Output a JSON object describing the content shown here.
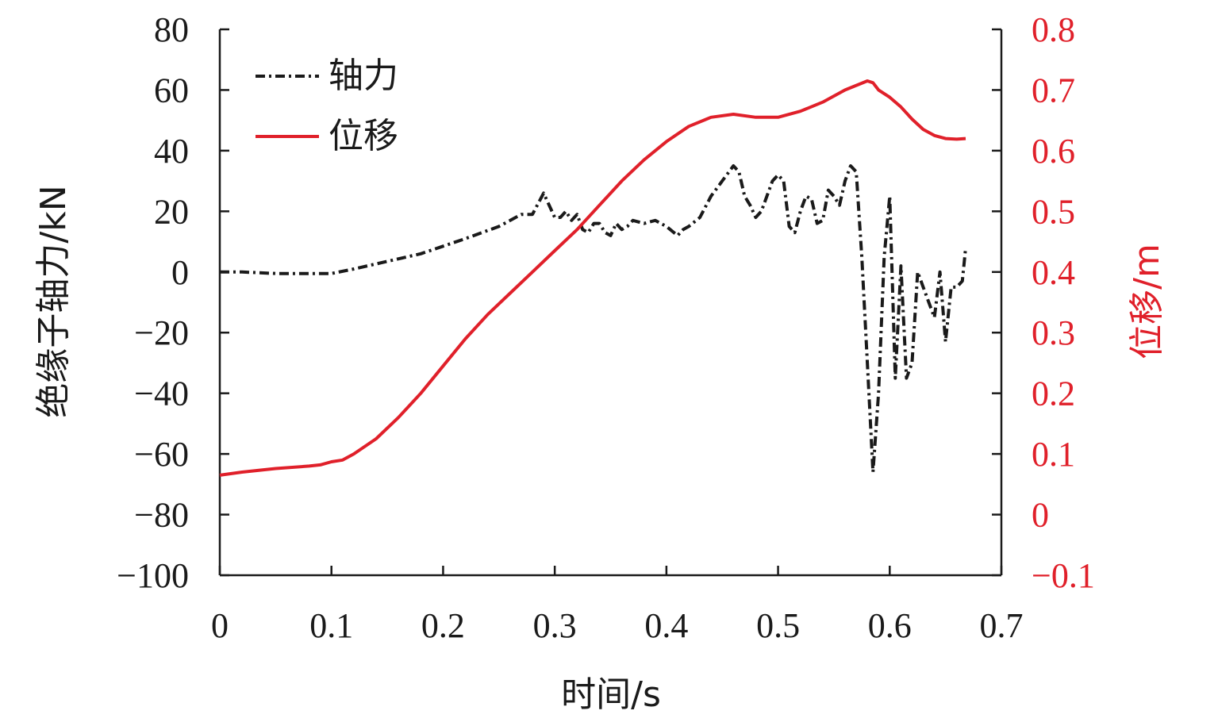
{
  "chart_data": {
    "type": "line",
    "xlabel": "时间/s",
    "y_left_label": "绝缘子轴力/kN",
    "y_right_label": "位移/m",
    "xlim": [
      0,
      0.7
    ],
    "ylim_left": [
      -100,
      80
    ],
    "ylim_right": [
      -0.1,
      0.8
    ],
    "x_ticks": [
      0,
      0.1,
      0.2,
      0.3,
      0.4,
      0.5,
      0.6,
      0.7
    ],
    "x_tick_labels": [
      "0",
      "0.1",
      "0.2",
      "0.3",
      "0.4",
      "0.5",
      "0.6",
      "0.7"
    ],
    "y_left_ticks": [
      -100,
      -80,
      -60,
      -40,
      -20,
      0,
      20,
      40,
      60,
      80
    ],
    "y_left_tick_labels": [
      "−100",
      "−80",
      "−60",
      "−40",
      "−20",
      "0",
      "20",
      "40",
      "60",
      "80"
    ],
    "y_right_ticks": [
      -0.1,
      0,
      0.1,
      0.2,
      0.3,
      0.4,
      0.5,
      0.6,
      0.7,
      0.8
    ],
    "y_right_tick_labels": [
      "−0.1",
      "0",
      "0.1",
      "0.2",
      "0.3",
      "0.4",
      "0.5",
      "0.6",
      "0.7",
      "0.8"
    ],
    "grid": false,
    "legend_position": "top-left",
    "series": [
      {
        "name": "轴力",
        "axis": "left",
        "color": "#1a1a1a",
        "dash": "dash-dot",
        "x": [
          0,
          0.02,
          0.05,
          0.08,
          0.1,
          0.12,
          0.15,
          0.18,
          0.2,
          0.22,
          0.25,
          0.27,
          0.28,
          0.29,
          0.3,
          0.305,
          0.31,
          0.315,
          0.32,
          0.325,
          0.33,
          0.335,
          0.34,
          0.345,
          0.35,
          0.355,
          0.36,
          0.365,
          0.37,
          0.38,
          0.39,
          0.4,
          0.41,
          0.415,
          0.42,
          0.43,
          0.44,
          0.45,
          0.46,
          0.465,
          0.47,
          0.475,
          0.48,
          0.485,
          0.49,
          0.495,
          0.5,
          0.505,
          0.51,
          0.515,
          0.52,
          0.525,
          0.53,
          0.535,
          0.54,
          0.545,
          0.55,
          0.555,
          0.56,
          0.565,
          0.57,
          0.575,
          0.58,
          0.585,
          0.59,
          0.595,
          0.6,
          0.605,
          0.61,
          0.615,
          0.62,
          0.625,
          0.63,
          0.635,
          0.64,
          0.645,
          0.65,
          0.655,
          0.66,
          0.665,
          0.668
        ],
        "values": [
          0,
          0,
          -0.5,
          -0.5,
          -0.5,
          1,
          3.5,
          6,
          8.5,
          11,
          15,
          19,
          19,
          26,
          18,
          18,
          20,
          17,
          19,
          14,
          13,
          16,
          16,
          13,
          12,
          16,
          14,
          15,
          17,
          16,
          17,
          15,
          12,
          14,
          15,
          18,
          25,
          30,
          35,
          33,
          25,
          22,
          18,
          20,
          25,
          30,
          32,
          30,
          15,
          13,
          20,
          25,
          24,
          16,
          17,
          27,
          25,
          22,
          30,
          35,
          33,
          5,
          -30,
          -66,
          -40,
          5,
          25,
          -35,
          2,
          -35,
          -30,
          0,
          -5,
          -10,
          -15,
          0,
          -23,
          -5,
          -5,
          -3,
          8
        ]
      },
      {
        "name": "位移",
        "axis": "right",
        "color": "#e0202a",
        "dash": "solid",
        "x": [
          0,
          0.02,
          0.05,
          0.08,
          0.09,
          0.1,
          0.11,
          0.12,
          0.14,
          0.16,
          0.18,
          0.2,
          0.22,
          0.24,
          0.26,
          0.28,
          0.3,
          0.32,
          0.34,
          0.36,
          0.38,
          0.4,
          0.42,
          0.44,
          0.46,
          0.48,
          0.5,
          0.52,
          0.54,
          0.56,
          0.58,
          0.585,
          0.59,
          0.6,
          0.61,
          0.62,
          0.63,
          0.64,
          0.65,
          0.66,
          0.668
        ],
        "values": [
          0.065,
          0.07,
          0.076,
          0.08,
          0.082,
          0.087,
          0.09,
          0.1,
          0.125,
          0.16,
          0.2,
          0.245,
          0.29,
          0.33,
          0.365,
          0.4,
          0.435,
          0.47,
          0.51,
          0.55,
          0.585,
          0.615,
          0.64,
          0.655,
          0.66,
          0.655,
          0.655,
          0.665,
          0.68,
          0.7,
          0.715,
          0.712,
          0.7,
          0.688,
          0.672,
          0.652,
          0.635,
          0.625,
          0.62,
          0.619,
          0.62
        ]
      }
    ]
  }
}
